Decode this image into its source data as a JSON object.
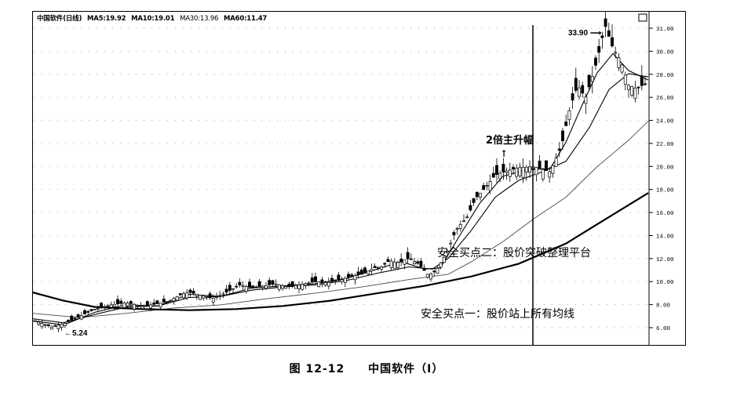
{
  "legend": {
    "name": "中国软件(日线)",
    "ma": [
      "MA5:19.92",
      "MA10:19.01",
      "MA30:13.96",
      "MA60:11.47"
    ]
  },
  "annotations": {
    "high_label": "33.90",
    "low_label": "5.24",
    "rise_label": "2倍主升幅",
    "buy_point_1": "安全买点一：股价站上所有均线",
    "buy_point_2": "安全买点二：股价突破整理平台"
  },
  "caption": {
    "figure": "图 12-12",
    "title": "中国软件（Ⅰ）"
  },
  "colors": {
    "ink": "#000000",
    "grid": "#888888",
    "background": "#ffffff"
  },
  "chart_data": {
    "type": "candlestick",
    "title": "中国软件(日线)",
    "y_ticks": [
      "31.00",
      "30.00",
      "28.00",
      "26.00",
      "24.00",
      "22.00",
      "20.00",
      "18.00",
      "16.00",
      "14.00",
      "12.00",
      "10.00",
      "8.00",
      "6.00"
    ],
    "ylim": [
      4.5,
      34.5
    ],
    "grid": true,
    "price_line": [
      [
        0,
        6.0
      ],
      [
        25,
        5.3
      ],
      [
        40,
        5.6
      ],
      [
        60,
        6.3
      ],
      [
        80,
        7.0
      ],
      [
        100,
        7.4
      ],
      [
        120,
        7.6
      ],
      [
        140,
        7.3
      ],
      [
        160,
        7.5
      ],
      [
        175,
        7.8
      ],
      [
        190,
        8.4
      ],
      [
        200,
        8.6
      ],
      [
        215,
        8.3
      ],
      [
        230,
        8.0
      ],
      [
        245,
        8.5
      ],
      [
        255,
        8.9
      ],
      [
        265,
        9.3
      ],
      [
        280,
        9.0
      ],
      [
        295,
        9.2
      ],
      [
        310,
        9.4
      ],
      [
        325,
        9.1
      ],
      [
        340,
        9.3
      ],
      [
        360,
        9.6
      ],
      [
        375,
        9.5
      ],
      [
        395,
        9.8
      ],
      [
        405,
        10.1
      ],
      [
        420,
        10.3
      ],
      [
        435,
        10.9
      ],
      [
        445,
        11.0
      ],
      [
        455,
        11.6
      ],
      [
        465,
        11.4
      ],
      [
        480,
        11.8
      ],
      [
        492,
        11.3
      ],
      [
        505,
        10.2
      ],
      [
        515,
        10.7
      ],
      [
        528,
        12.3
      ],
      [
        540,
        14.5
      ],
      [
        555,
        15.8
      ],
      [
        565,
        17.5
      ],
      [
        575,
        18.3
      ],
      [
        590,
        19.7
      ],
      [
        605,
        20.1
      ],
      [
        620,
        20.4
      ],
      [
        640,
        20.5
      ],
      [
        660,
        20.0
      ],
      [
        675,
        22.6
      ],
      [
        685,
        26.0
      ],
      [
        695,
        28.2
      ],
      [
        705,
        27.0
      ],
      [
        712,
        28.6
      ],
      [
        720,
        30.6
      ],
      [
        730,
        33.9
      ],
      [
        740,
        31.7
      ],
      [
        750,
        30.5
      ],
      [
        760,
        28.2
      ],
      [
        770,
        27.9
      ],
      [
        785,
        28.5
      ]
    ],
    "ma_lines": [
      {
        "name": "MA5",
        "points": [
          [
            0,
            5.9
          ],
          [
            40,
            5.5
          ],
          [
            80,
            6.7
          ],
          [
            120,
            7.4
          ],
          [
            160,
            7.3
          ],
          [
            200,
            8.4
          ],
          [
            240,
            8.2
          ],
          [
            280,
            9.0
          ],
          [
            320,
            9.2
          ],
          [
            360,
            9.4
          ],
          [
            400,
            9.9
          ],
          [
            440,
            10.8
          ],
          [
            470,
            11.5
          ],
          [
            500,
            10.8
          ],
          [
            520,
            10.9
          ],
          [
            545,
            14.0
          ],
          [
            570,
            17.0
          ],
          [
            600,
            19.6
          ],
          [
            630,
            20.2
          ],
          [
            660,
            20.3
          ],
          [
            680,
            22.8
          ],
          [
            700,
            26.2
          ],
          [
            720,
            29.4
          ],
          [
            740,
            31.2
          ],
          [
            760,
            29.6
          ],
          [
            785,
            28.7
          ]
        ]
      },
      {
        "name": "MA10",
        "points": [
          [
            0,
            6.1
          ],
          [
            40,
            5.7
          ],
          [
            80,
            6.5
          ],
          [
            120,
            7.2
          ],
          [
            160,
            7.3
          ],
          [
            200,
            8.1
          ],
          [
            240,
            8.2
          ],
          [
            280,
            8.8
          ],
          [
            320,
            9.1
          ],
          [
            360,
            9.3
          ],
          [
            400,
            9.7
          ],
          [
            440,
            10.4
          ],
          [
            480,
            11.0
          ],
          [
            510,
            10.8
          ],
          [
            530,
            11.8
          ],
          [
            560,
            14.5
          ],
          [
            590,
            17.6
          ],
          [
            620,
            19.2
          ],
          [
            650,
            20.0
          ],
          [
            680,
            21.0
          ],
          [
            710,
            24.2
          ],
          [
            735,
            27.8
          ],
          [
            760,
            29.3
          ],
          [
            785,
            29.0
          ]
        ]
      },
      {
        "name": "MA30",
        "points": [
          [
            0,
            6.6
          ],
          [
            60,
            6.2
          ],
          [
            120,
            6.6
          ],
          [
            180,
            7.1
          ],
          [
            240,
            7.4
          ],
          [
            300,
            8.0
          ],
          [
            360,
            8.5
          ],
          [
            420,
            9.1
          ],
          [
            480,
            9.8
          ],
          [
            530,
            10.3
          ],
          [
            560,
            11.5
          ],
          [
            600,
            13.4
          ],
          [
            640,
            15.6
          ],
          [
            680,
            17.6
          ],
          [
            720,
            20.5
          ],
          [
            760,
            23.0
          ],
          [
            785,
            24.8
          ]
        ]
      },
      {
        "name": "MA60",
        "points": [
          [
            0,
            8.6
          ],
          [
            40,
            7.8
          ],
          [
            80,
            7.2
          ],
          [
            140,
            7.0
          ],
          [
            200,
            6.9
          ],
          [
            260,
            7.0
          ],
          [
            320,
            7.3
          ],
          [
            380,
            7.8
          ],
          [
            440,
            8.5
          ],
          [
            500,
            9.2
          ],
          [
            560,
            10.1
          ],
          [
            620,
            11.3
          ],
          [
            680,
            13.2
          ],
          [
            730,
            15.5
          ],
          [
            785,
            18.0
          ]
        ]
      }
    ]
  }
}
